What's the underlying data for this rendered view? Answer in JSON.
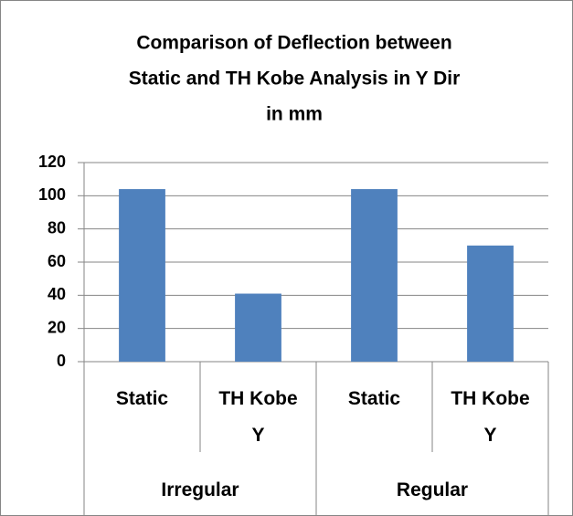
{
  "chart_data": {
    "type": "bar",
    "title": [
      "Comparison of Deflection between",
      "Static and TH Kobe Analysis in Y Dir",
      "in mm"
    ],
    "categories": [
      "Static",
      "TH Kobe Y",
      "Static",
      "TH Kobe Y"
    ],
    "groups": [
      {
        "name": "Irregular",
        "span": 2
      },
      {
        "name": "Regular",
        "span": 2
      }
    ],
    "values": [
      104,
      41,
      104,
      70
    ],
    "color": "#4f81bd",
    "ylim": [
      0,
      120
    ],
    "yticks": [
      0,
      20,
      40,
      60,
      80,
      100,
      120
    ],
    "grid": true
  }
}
